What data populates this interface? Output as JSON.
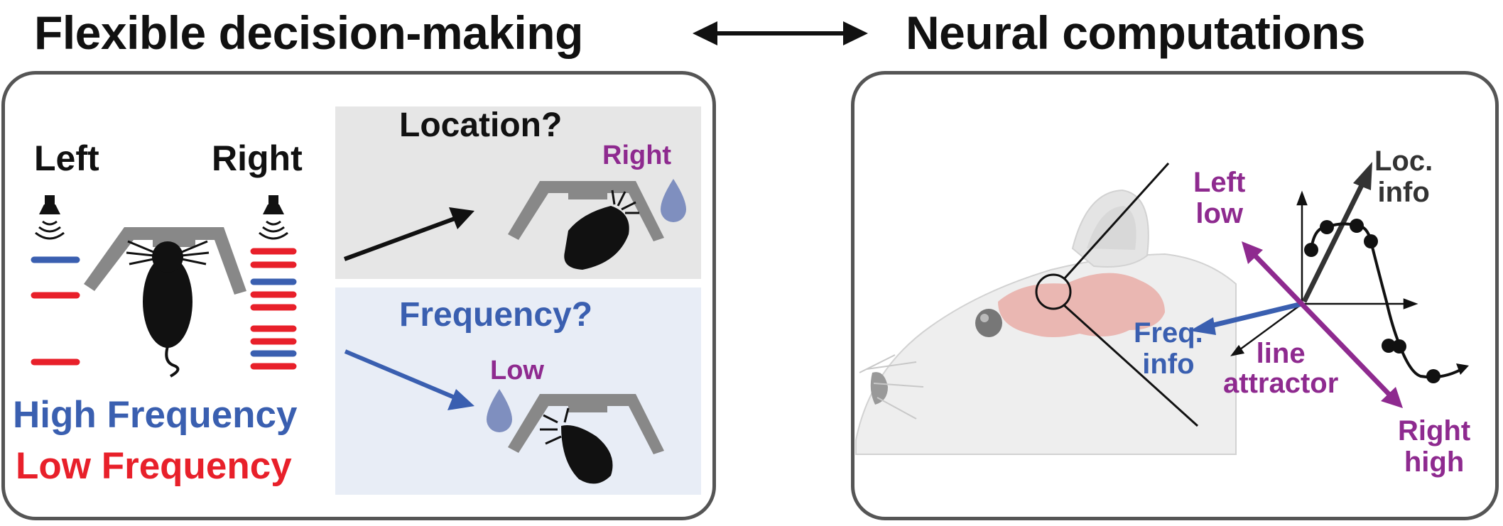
{
  "header": {
    "left_title": "Flexible decision-making",
    "right_title": "Neural computations"
  },
  "left_panel": {
    "left_label": "Left",
    "right_label": "Right",
    "legend_high": "High Frequency",
    "legend_low": "Low Frequency",
    "location_question": "Location?",
    "location_answer": "Right",
    "frequency_question": "Frequency?",
    "frequency_answer": "Low"
  },
  "right_panel": {
    "loc_info": "Loc.\ninfo",
    "left_low": "Left\nlow",
    "freq_info": "Freq.\ninfo",
    "line_attractor": "line\nattractor",
    "right_high": "Right\nhigh"
  },
  "colors": {
    "high_frequency": "#3a5fb0",
    "low_frequency": "#e8202a",
    "answer_purple": "#8e2a8f",
    "panel_border": "#555555",
    "location_bg": "#e6e6e6",
    "frequency_bg": "#e8edf6"
  }
}
